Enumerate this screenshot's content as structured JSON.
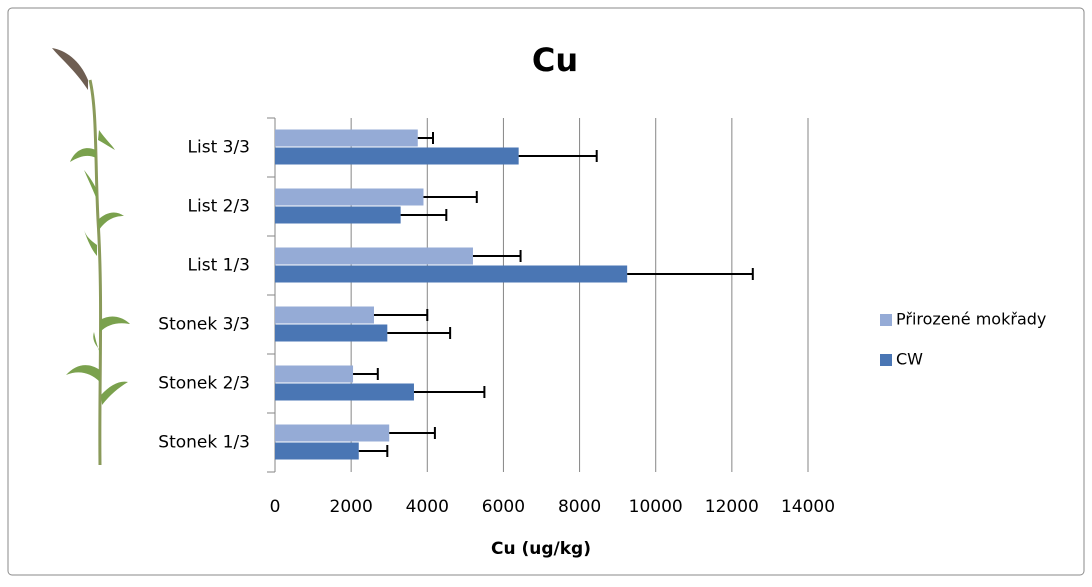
{
  "chart_data": {
    "type": "bar",
    "orientation": "horizontal",
    "title": "Cu",
    "x_label": "Cu (ug/kg)",
    "categories": [
      "Stonek 1/3",
      "Stonek 2/3",
      "Stonek 3/3",
      "List 1/3",
      "List 2/3",
      "List 3/3"
    ],
    "series": [
      {
        "name": "Přirozené mokřady",
        "color": "#95abd6",
        "values": [
          3000,
          2050,
          2600,
          5200,
          3900,
          3750
        ],
        "errors": [
          1200,
          650,
          1400,
          1250,
          1400,
          400
        ]
      },
      {
        "name": "CW",
        "color": "#4a76b4",
        "values": [
          2200,
          3650,
          2950,
          9250,
          3300,
          6400
        ],
        "errors": [
          750,
          1850,
          1650,
          3300,
          1200,
          2050
        ]
      }
    ],
    "xlim": [
      0,
      14000
    ],
    "xticks": [
      0,
      2000,
      4000,
      6000,
      8000,
      10000,
      12000,
      14000
    ],
    "grid": true,
    "legend": "right"
  }
}
